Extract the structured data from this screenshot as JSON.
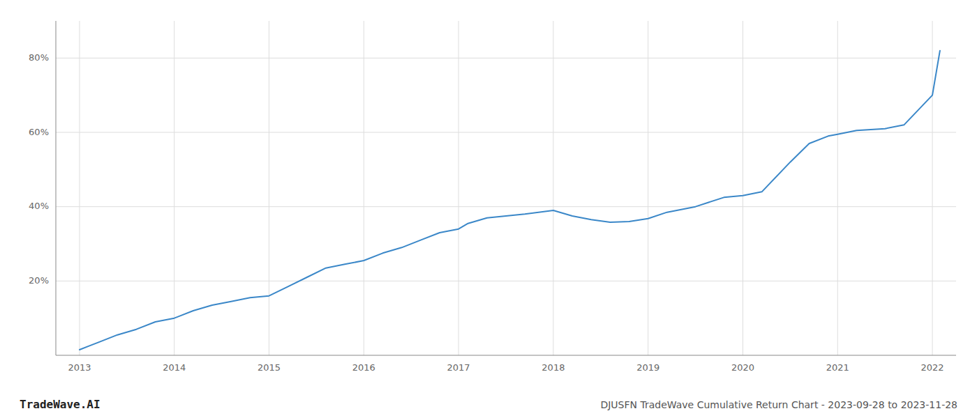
{
  "chart_data": {
    "type": "line",
    "title": "DJUSFN TradeWave Cumulative Return Chart - 2023-09-28 to 2023-11-28",
    "annotations": [
      "TradeWave.AI"
    ],
    "x": [
      2013.0,
      2013.1,
      2013.2,
      2013.4,
      2013.6,
      2013.8,
      2014.0,
      2014.2,
      2014.4,
      2014.6,
      2014.8,
      2015.0,
      2015.2,
      2015.4,
      2015.6,
      2015.8,
      2016.0,
      2016.2,
      2016.4,
      2016.6,
      2016.8,
      2017.0,
      2017.1,
      2017.3,
      2017.5,
      2017.7,
      2018.0,
      2018.2,
      2018.4,
      2018.6,
      2018.8,
      2019.0,
      2019.2,
      2019.5,
      2019.8,
      2020.0,
      2020.2,
      2020.5,
      2020.7,
      2020.9,
      2021.0,
      2021.2,
      2021.5,
      2021.7,
      2022.0,
      2022.08
    ],
    "values": [
      1.5,
      2.5,
      3.5,
      5.5,
      7.0,
      9.0,
      10.0,
      12.0,
      13.5,
      14.5,
      15.5,
      16.0,
      18.5,
      21.0,
      23.5,
      24.5,
      25.5,
      27.5,
      29.0,
      31.0,
      33.0,
      34.0,
      35.5,
      37.0,
      37.5,
      38.0,
      39.0,
      37.5,
      36.5,
      35.8,
      36.0,
      36.8,
      38.5,
      40.0,
      42.5,
      43.0,
      44.0,
      52.0,
      57.0,
      59.0,
      59.5,
      60.5,
      61.0,
      62.0,
      70.0,
      82.0
    ],
    "color": "#3a87c8",
    "xlim": [
      2012.75,
      2022.25
    ],
    "ylim": [
      0,
      90
    ],
    "xticks": [
      2013,
      2014,
      2015,
      2016,
      2017,
      2018,
      2019,
      2020,
      2021,
      2022
    ],
    "yticks": [
      {
        "value": 20,
        "label": "20%"
      },
      {
        "value": 40,
        "label": "40%"
      },
      {
        "value": 60,
        "label": "60%"
      },
      {
        "value": 80,
        "label": "80%"
      }
    ],
    "grid": true
  }
}
